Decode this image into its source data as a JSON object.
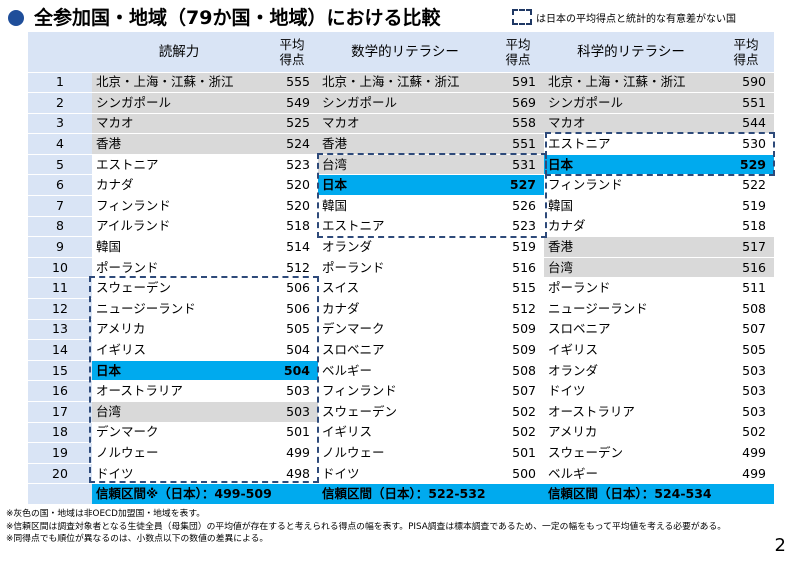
{
  "title": "全参加国・地域（79か国・地域）における比較",
  "legend": "は日本の平均得点と統計的な有意差がない国",
  "headers": {
    "reading": "読解力",
    "math": "数学的リテラシー",
    "science": "科学的リテラシー",
    "score_line1": "平均",
    "score_line2": "得点"
  },
  "rows": [
    {
      "rank": "1",
      "r": [
        "北京・上海・江蘇・浙江",
        "555"
      ],
      "m": [
        "北京・上海・江蘇・浙江",
        "591"
      ],
      "s": [
        "北京・上海・江蘇・浙江",
        "590"
      ]
    },
    {
      "rank": "2",
      "r": [
        "シンガポール",
        "549"
      ],
      "m": [
        "シンガポール",
        "569"
      ],
      "s": [
        "シンガポール",
        "551"
      ]
    },
    {
      "rank": "3",
      "r": [
        "マカオ",
        "525"
      ],
      "m": [
        "マカオ",
        "558"
      ],
      "s": [
        "マカオ",
        "544"
      ]
    },
    {
      "rank": "4",
      "r": [
        "香港",
        "524"
      ],
      "m": [
        "香港",
        "551"
      ],
      "s": [
        "エストニア",
        "530"
      ]
    },
    {
      "rank": "5",
      "r": [
        "エストニア",
        "523"
      ],
      "m": [
        "台湾",
        "531"
      ],
      "s": [
        "日本",
        "529"
      ]
    },
    {
      "rank": "6",
      "r": [
        "カナダ",
        "520"
      ],
      "m": [
        "日本",
        "527"
      ],
      "s": [
        "フィンランド",
        "522"
      ]
    },
    {
      "rank": "7",
      "r": [
        "フィンランド",
        "520"
      ],
      "m": [
        "韓国",
        "526"
      ],
      "s": [
        "韓国",
        "519"
      ]
    },
    {
      "rank": "8",
      "r": [
        "アイルランド",
        "518"
      ],
      "m": [
        "エストニア",
        "523"
      ],
      "s": [
        "カナダ",
        "518"
      ]
    },
    {
      "rank": "9",
      "r": [
        "韓国",
        "514"
      ],
      "m": [
        "オランダ",
        "519"
      ],
      "s": [
        "香港",
        "517"
      ]
    },
    {
      "rank": "10",
      "r": [
        "ポーランド",
        "512"
      ],
      "m": [
        "ポーランド",
        "516"
      ],
      "s": [
        "台湾",
        "516"
      ]
    },
    {
      "rank": "11",
      "r": [
        "スウェーデン",
        "506"
      ],
      "m": [
        "スイス",
        "515"
      ],
      "s": [
        "ポーランド",
        "511"
      ]
    },
    {
      "rank": "12",
      "r": [
        "ニュージーランド",
        "506"
      ],
      "m": [
        "カナダ",
        "512"
      ],
      "s": [
        "ニュージーランド",
        "508"
      ]
    },
    {
      "rank": "13",
      "r": [
        "アメリカ",
        "505"
      ],
      "m": [
        "デンマーク",
        "509"
      ],
      "s": [
        "スロベニア",
        "507"
      ]
    },
    {
      "rank": "14",
      "r": [
        "イギリス",
        "504"
      ],
      "m": [
        "スロベニア",
        "509"
      ],
      "s": [
        "イギリス",
        "505"
      ]
    },
    {
      "rank": "15",
      "r": [
        "日本",
        "504"
      ],
      "m": [
        "ベルギー",
        "508"
      ],
      "s": [
        "オランダ",
        "503"
      ]
    },
    {
      "rank": "16",
      "r": [
        "オーストラリア",
        "503"
      ],
      "m": [
        "フィンランド",
        "507"
      ],
      "s": [
        "ドイツ",
        "503"
      ]
    },
    {
      "rank": "17",
      "r": [
        "台湾",
        "503"
      ],
      "m": [
        "スウェーデン",
        "502"
      ],
      "s": [
        "オーストラリア",
        "503"
      ]
    },
    {
      "rank": "18",
      "r": [
        "デンマーク",
        "501"
      ],
      "m": [
        "イギリス",
        "502"
      ],
      "s": [
        "アメリカ",
        "502"
      ]
    },
    {
      "rank": "19",
      "r": [
        "ノルウェー",
        "499"
      ],
      "m": [
        "ノルウェー",
        "501"
      ],
      "s": [
        "スウェーデン",
        "499"
      ]
    },
    {
      "rank": "20",
      "r": [
        "ドイツ",
        "498"
      ],
      "m": [
        "ドイツ",
        "500"
      ],
      "s": [
        "ベルギー",
        "499"
      ]
    }
  ],
  "footer": {
    "reading": "信頼区間※（日本）：499-509",
    "math": "信頼区間（日本）：522-532",
    "science": "信頼区間（日本）：524-534"
  },
  "notes": [
    "※灰色の国・地域は非OECD加盟国・地域を表す。",
    "※信頼区間は調査対象者となる生徒全員（母集団）の平均値が存在すると考えられる得点の幅を表す。PISA調査は標本調査であるため、一定の幅をもって平均値を考える必要がある。",
    "※同得点でも順位が異なるのは、小数点以下の数値の差異による。"
  ],
  "page_number": "2",
  "colors": {
    "header_bg": "#d9e4f5",
    "non_oecd_bg": "#d9d9d9",
    "japan_bg": "#00aaee",
    "dash_border": "#2e4a7a",
    "title_dot": "#1f4e9a"
  },
  "non_oecd": [
    "北京・上海・江蘇・浙江",
    "シンガポール",
    "マカオ",
    "香港",
    "台湾"
  ]
}
